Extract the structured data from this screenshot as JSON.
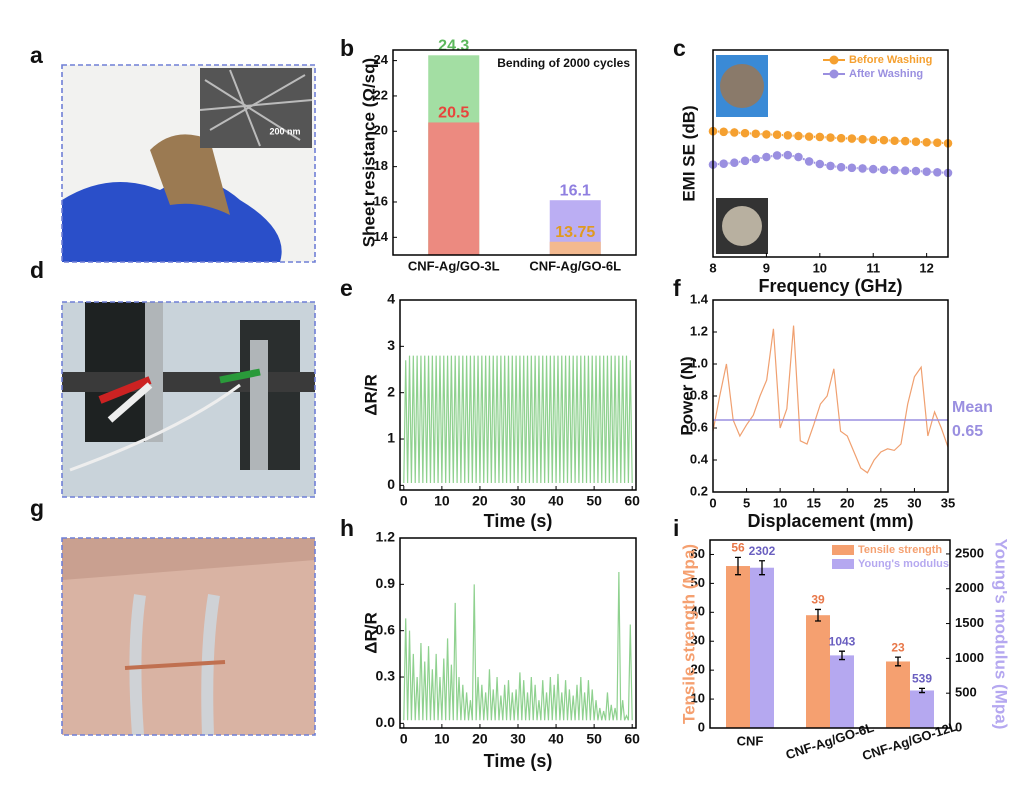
{
  "panel_labels": [
    "a",
    "b",
    "c",
    "d",
    "e",
    "f",
    "g",
    "h",
    "i"
  ],
  "scale_bar": "200 nm",
  "chart_data": [
    {
      "type": "bar",
      "ylabel": "Sheet resistance (Ω/sq)",
      "annotation": "Bending of 2000 cycles",
      "categories": [
        "CNF-Ag/GO-3L",
        "CNF-Ag/GO-6L"
      ],
      "series": [
        {
          "colors": [
            "#ec8a80",
            "#f3b98f"
          ],
          "label_colors": [
            "#e8453c",
            "#e09a20"
          ],
          "values": [
            20.5,
            13.75
          ]
        },
        {
          "colors": [
            "#a3dea3",
            "#bbaef3"
          ],
          "label_colors": [
            "#5cb85c",
            "#8f7fe0"
          ],
          "values": [
            24.3,
            16.1
          ]
        }
      ],
      "ylim": [
        13,
        24.6
      ],
      "yticks": [
        14,
        16,
        18,
        20,
        22,
        24
      ]
    },
    {
      "type": "line",
      "xlabel": "Frequency (GHz)",
      "ylabel": "EMI SE (dB)",
      "legend": "upper right",
      "x": [
        8,
        8.2,
        8.4,
        8.6,
        8.8,
        9,
        9.2,
        9.4,
        9.6,
        9.8,
        10,
        10.2,
        10.4,
        10.6,
        10.8,
        11,
        11.2,
        11.4,
        11.6,
        11.8,
        12,
        12.2,
        12.4
      ],
      "series": [
        {
          "name": "Before Washing",
          "color": "#f5a030",
          "values": [
            39.5,
            39.3,
            39.1,
            38.9,
            38.7,
            38.5,
            38.4,
            38.2,
            38.0,
            37.8,
            37.7,
            37.5,
            37.3,
            37.2,
            37.0,
            36.8,
            36.7,
            36.5,
            36.4,
            36.2,
            36.0,
            35.9,
            35.7
          ]
        },
        {
          "name": "After Washing",
          "color": "#9a8fe0",
          "values": [
            29,
            29.3,
            29.6,
            30.2,
            30.8,
            31.4,
            31.9,
            32,
            31.4,
            30,
            29.2,
            28.6,
            28.2,
            28,
            27.8,
            27.6,
            27.4,
            27.3,
            27.1,
            27,
            26.8,
            26.6,
            26.4
          ]
        }
      ],
      "xlim": [
        8,
        12.4
      ],
      "xticks": [
        8,
        9,
        10,
        11,
        12
      ],
      "ylim": [
        0,
        65
      ]
    },
    {
      "type": "line",
      "xlabel": "Time (s)",
      "ylabel": "ΔR/R",
      "color": "#8fd18f",
      "x": [
        0,
        0.5,
        1,
        1.5,
        2,
        2.5,
        3,
        3.5,
        4,
        4.5,
        5,
        5.5,
        6,
        6.5,
        7,
        7.5,
        8,
        8.5,
        9,
        9.5,
        10,
        10.5,
        11,
        11.5,
        12,
        12.5,
        13,
        13.5,
        14,
        14.5,
        15,
        15.5,
        16,
        16.5,
        17,
        17.5,
        18,
        18.5,
        19,
        19.5,
        20,
        20.5,
        21,
        21.5,
        22,
        22.5,
        23,
        23.5,
        24,
        24.5,
        25,
        25.5,
        26,
        26.5,
        27,
        27.5,
        28,
        28.5,
        29,
        29.5,
        30,
        30.5,
        31,
        31.5,
        32,
        32.5,
        33,
        33.5,
        34,
        34.5,
        35,
        35.5,
        36,
        36.5,
        37,
        37.5,
        38,
        38.5,
        39,
        39.5,
        40,
        40.5,
        41,
        41.5,
        42,
        42.5,
        43,
        43.5,
        44,
        44.5,
        45,
        45.5,
        46,
        46.5,
        47,
        47.5,
        48,
        48.5,
        49,
        49.5,
        50,
        50.5,
        51,
        51.5,
        52,
        52.5,
        53,
        53.5,
        54,
        54.5,
        55,
        55.5,
        56,
        56.5,
        57,
        57.5,
        58,
        58.5,
        59,
        59.5,
        60
      ],
      "values": [
        0.05,
        2.7,
        0.05,
        2.8,
        0.05,
        2.8,
        0.05,
        2.8,
        0.05,
        2.8,
        0.05,
        2.8,
        0.05,
        2.8,
        0.05,
        2.8,
        0.05,
        2.8,
        0.05,
        2.8,
        0.05,
        2.8,
        0.05,
        2.8,
        0.05,
        2.8,
        0.05,
        2.8,
        0.05,
        2.8,
        0.05,
        2.8,
        0.05,
        2.8,
        0.05,
        2.8,
        0.05,
        2.8,
        0.05,
        2.8,
        0.05,
        2.8,
        0.05,
        2.8,
        0.05,
        2.8,
        0.05,
        2.8,
        0.05,
        2.8,
        0.05,
        2.8,
        0.05,
        2.8,
        0.05,
        2.8,
        0.05,
        2.8,
        0.05,
        2.8,
        0.05,
        2.8,
        0.05,
        2.8,
        0.05,
        2.8,
        0.05,
        2.8,
        0.05,
        2.8,
        0.05,
        2.8,
        0.05,
        2.8,
        0.05,
        2.8,
        0.05,
        2.8,
        0.05,
        2.8,
        0.05,
        2.8,
        0.05,
        2.8,
        0.05,
        2.8,
        0.05,
        2.8,
        0.05,
        2.8,
        0.05,
        2.8,
        0.05,
        2.8,
        0.05,
        2.8,
        0.05,
        2.8,
        0.05,
        2.8,
        0.05,
        2.8,
        0.05,
        2.8,
        0.05,
        2.8,
        0.05,
        2.8,
        0.05,
        2.8,
        0.05,
        2.8,
        0.05,
        2.8,
        0.05,
        2.8,
        0.05,
        2.8,
        0.05,
        2.7,
        0.05
      ],
      "xlim": [
        -1,
        61
      ],
      "xticks": [
        0,
        10,
        20,
        30,
        40,
        50,
        60
      ],
      "ylim": [
        -0.1,
        4
      ],
      "yticks": [
        0,
        1,
        2,
        3,
        4
      ]
    },
    {
      "type": "line",
      "xlabel": "Displacement (mm)",
      "ylabel": "Power (N)",
      "color": "#f0a070",
      "mean": 0.65,
      "mean_label": "Mean",
      "mean_color": "#9a8fe0",
      "x": [
        0,
        1,
        2,
        3,
        4,
        5,
        6,
        7,
        8,
        9,
        10,
        11,
        12,
        13,
        14,
        15,
        16,
        17,
        18,
        19,
        20,
        21,
        22,
        23,
        24,
        25,
        26,
        27,
        28,
        29,
        30,
        31,
        32,
        33,
        34,
        35
      ],
      "values": [
        0.58,
        0.8,
        1.0,
        0.65,
        0.55,
        0.62,
        0.68,
        0.8,
        0.9,
        1.22,
        0.6,
        0.72,
        1.24,
        0.52,
        0.5,
        0.62,
        0.75,
        0.8,
        0.97,
        0.58,
        0.55,
        0.45,
        0.35,
        0.32,
        0.4,
        0.45,
        0.47,
        0.46,
        0.5,
        0.75,
        0.92,
        0.98,
        0.55,
        0.7,
        0.6,
        0.48
      ],
      "xlim": [
        0,
        35
      ],
      "xticks": [
        0,
        5,
        10,
        15,
        20,
        25,
        30,
        35
      ],
      "ylim": [
        0.2,
        1.4
      ],
      "yticks": [
        0.2,
        0.4,
        0.6,
        0.8,
        {
          "value": 1,
          "label": "1.0"
        },
        1.2,
        1.4
      ]
    },
    {
      "type": "line",
      "xlabel": "Time (s)",
      "ylabel": "ΔR/R",
      "color": "#8fd18f",
      "x": [
        0,
        0.5,
        1,
        1.5,
        2,
        2.5,
        3,
        3.5,
        4,
        4.5,
        5,
        5.5,
        6,
        6.5,
        7,
        7.5,
        8,
        8.5,
        9,
        9.5,
        10,
        10.5,
        11,
        11.5,
        12,
        12.5,
        13,
        13.5,
        14,
        14.5,
        15,
        15.5,
        16,
        16.5,
        17,
        17.5,
        18,
        18.5,
        19,
        19.5,
        20,
        20.5,
        21,
        21.5,
        22,
        22.5,
        23,
        23.5,
        24,
        24.5,
        25,
        25.5,
        26,
        26.5,
        27,
        27.5,
        28,
        28.5,
        29,
        29.5,
        30,
        30.5,
        31,
        31.5,
        32,
        32.5,
        33,
        33.5,
        34,
        34.5,
        35,
        35.5,
        36,
        36.5,
        37,
        37.5,
        38,
        38.5,
        39,
        39.5,
        40,
        40.5,
        41,
        41.5,
        42,
        42.5,
        43,
        43.5,
        44,
        44.5,
        45,
        45.5,
        46,
        46.5,
        47,
        47.5,
        48,
        48.5,
        49,
        49.5,
        50,
        50.5,
        51,
        51.5,
        52,
        52.5,
        53,
        53.5,
        54,
        54.5,
        55,
        55.5,
        56,
        56.5,
        57,
        57.5,
        58,
        58.5,
        59,
        59.5,
        60
      ],
      "values": [
        0.02,
        0.68,
        0.02,
        0.6,
        0.02,
        0.45,
        0.02,
        0.3,
        0.02,
        0.52,
        0.02,
        0.4,
        0.02,
        0.5,
        0.02,
        0.35,
        0.02,
        0.45,
        0.02,
        0.3,
        0.02,
        0.42,
        0.02,
        0.55,
        0.02,
        0.38,
        0.02,
        0.78,
        0.02,
        0.3,
        0.02,
        0.25,
        0.02,
        0.2,
        0.02,
        0.15,
        0.02,
        0.9,
        0.02,
        0.3,
        0.02,
        0.25,
        0.02,
        0.2,
        0.02,
        0.35,
        0.02,
        0.22,
        0.02,
        0.3,
        0.02,
        0.18,
        0.02,
        0.25,
        0.02,
        0.28,
        0.02,
        0.2,
        0.02,
        0.22,
        0.02,
        0.33,
        0.02,
        0.28,
        0.02,
        0.2,
        0.02,
        0.3,
        0.02,
        0.25,
        0.02,
        0.15,
        0.02,
        0.28,
        0.02,
        0.2,
        0.02,
        0.3,
        0.02,
        0.25,
        0.02,
        0.32,
        0.02,
        0.2,
        0.02,
        0.28,
        0.02,
        0.22,
        0.02,
        0.18,
        0.02,
        0.25,
        0.02,
        0.3,
        0.02,
        0.2,
        0.02,
        0.28,
        0.02,
        0.22,
        0.02,
        0.15,
        0.02,
        0.1,
        0.02,
        0.08,
        0.02,
        0.2,
        0.02,
        0.12,
        0.02,
        0.1,
        0.02,
        0.98,
        0.02,
        0.15,
        0.02,
        0.05,
        0.02,
        0.64,
        0.02
      ],
      "xlim": [
        -1,
        61
      ],
      "xticks": [
        0,
        10,
        20,
        30,
        40,
        50,
        60
      ],
      "ylim": [
        -0.03,
        1.2
      ],
      "yticks": [
        {
          "value": 0,
          "label": "0.0"
        },
        0.3,
        0.6,
        0.9,
        1.2
      ]
    },
    {
      "type": "bar",
      "ylabel": "Tensile strength (Mpa)",
      "y2label": "Young's modulus (Mpa)",
      "legend": "upper right",
      "categories": [
        "CNF",
        "CNF-Ag/GO-6L",
        "CNF-Ag/GO-12L"
      ],
      "series": [
        {
          "name": "Tensile strength",
          "color": "#f5a070",
          "values": [
            56,
            39,
            23
          ],
          "errors": [
            3,
            2,
            1.5
          ]
        },
        {
          "name": "Young's modulus",
          "color": "#b5a8f0",
          "axis": "y2",
          "values": [
            2302,
            1043,
            539
          ],
          "errors": [
            100,
            60,
            30
          ]
        }
      ],
      "ylim": [
        0,
        65
      ],
      "yticks": [
        0,
        10,
        20,
        30,
        40,
        50,
        60
      ],
      "y2lim": [
        0,
        2700
      ],
      "y2ticks": [
        0,
        500,
        1000,
        1500,
        2000,
        2500
      ]
    }
  ]
}
